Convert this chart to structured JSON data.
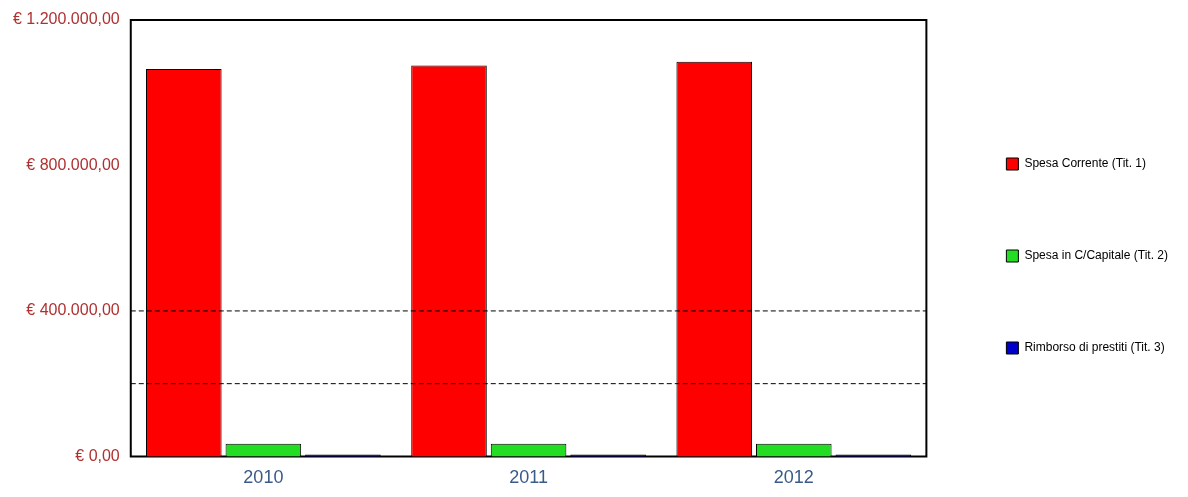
{
  "chart_data": {
    "type": "bar",
    "categories": [
      "2010",
      "2011",
      "2012"
    ],
    "series": [
      {
        "name": "Spesa Corrente (Tit. 1)",
        "color": "#ff0000",
        "values": [
          1065000,
          1075000,
          1085000
        ]
      },
      {
        "name": "Spesa in C/Capitale (Tit. 2)",
        "color": "#22dd22",
        "values": [
          35000,
          35000,
          35000
        ]
      },
      {
        "name": "Rimborso di prestiti (Tit. 3)",
        "color": "#0000cc",
        "values": [
          5000,
          5000,
          5000
        ]
      }
    ],
    "ylim": [
      0,
      1200000
    ],
    "yticks": [
      {
        "value": 0,
        "label": "€ 0,00"
      },
      {
        "value": 400000,
        "label": "€ 400.000,00"
      },
      {
        "value": 800000,
        "label": "€ 800.000,00"
      },
      {
        "value": 1200000,
        "label": "€ 1.200.000,00"
      }
    ],
    "ref_lines": [
      {
        "axis": "y",
        "value": 200000,
        "line_style": "dashed"
      },
      {
        "axis": "y",
        "value": 400000,
        "line_style": "dashed"
      }
    ],
    "grid": false,
    "legend": "right"
  }
}
